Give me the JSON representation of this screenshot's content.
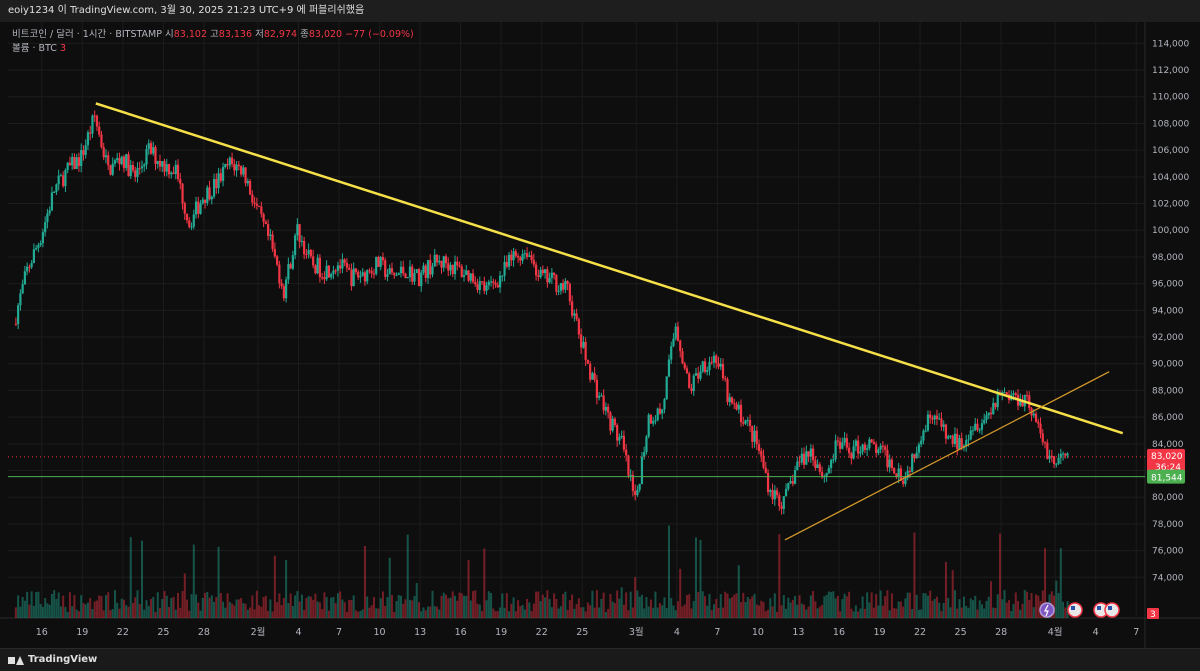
{
  "header": {
    "title": "eoiy1234 이 TradingView.com, 3월 30, 2025 21:23 UTC+9 에 퍼블리쉬했음"
  },
  "legend": {
    "symbol": "비트코인 / 달러 · 1시간 · BITSTAMP",
    "o_label": "시",
    "o_value": "83,102",
    "h_label": "고",
    "h_value": "83,136",
    "l_label": "저",
    "l_value": "82,974",
    "c_label": "종",
    "c_value": "83,020",
    "change": "−77 (−0.09%)",
    "volume_label": "볼륨 · BTC",
    "volume_value": "3"
  },
  "footer": {
    "brand": "TradingView"
  },
  "colors": {
    "up": "#22ab94",
    "down": "#f23645",
    "trend": "#f5e04a",
    "support": "#4caf50",
    "wedge": "#d49a2a",
    "grid": "#1c1c1c"
  },
  "icons": [
    "lightning-icon",
    "us-flag-icon",
    "us-flag-icon",
    "us-flag-icon"
  ],
  "chart_data": {
    "type": "candlestick",
    "ylim": [
      72000,
      115000
    ],
    "y_ticks": [
      74000,
      76000,
      78000,
      80000,
      82000,
      84000,
      86000,
      88000,
      90000,
      92000,
      94000,
      96000,
      98000,
      100000,
      102000,
      104000,
      106000,
      108000,
      110000,
      112000,
      114000
    ],
    "x_ticks": [
      "16",
      "19",
      "22",
      "25",
      "28",
      "2월",
      "4",
      "7",
      "10",
      "13",
      "16",
      "19",
      "22",
      "25",
      "3월",
      "4",
      "7",
      "10",
      "13",
      "16",
      "19",
      "22",
      "25",
      "28",
      "4월",
      "4",
      "7"
    ],
    "price_path": [
      {
        "d": "2025-01-14",
        "p": 93000
      },
      {
        "d": "2025-01-15",
        "p": 97000
      },
      {
        "d": "2025-01-16",
        "p": 99500
      },
      {
        "d": "2025-01-17",
        "p": 103000
      },
      {
        "d": "2025-01-18",
        "p": 104500
      },
      {
        "d": "2025-01-19",
        "p": 105500
      },
      {
        "d": "2025-01-20",
        "p": 108500
      },
      {
        "d": "2025-01-21",
        "p": 104500
      },
      {
        "d": "2025-01-22",
        "p": 105500
      },
      {
        "d": "2025-01-23",
        "p": 104000
      },
      {
        "d": "2025-01-24",
        "p": 106000
      },
      {
        "d": "2025-01-25",
        "p": 105000
      },
      {
        "d": "2025-01-26",
        "p": 104500
      },
      {
        "d": "2025-01-27",
        "p": 100500
      },
      {
        "d": "2025-01-28",
        "p": 102500
      },
      {
        "d": "2025-01-29",
        "p": 103500
      },
      {
        "d": "2025-01-30",
        "p": 105000
      },
      {
        "d": "2025-01-31",
        "p": 104500
      },
      {
        "d": "2025-02-01",
        "p": 101500
      },
      {
        "d": "2025-02-02",
        "p": 99000
      },
      {
        "d": "2025-02-03",
        "p": 95500
      },
      {
        "d": "2025-02-04",
        "p": 100000
      },
      {
        "d": "2025-02-05",
        "p": 97500
      },
      {
        "d": "2025-02-06",
        "p": 97000
      },
      {
        "d": "2025-02-07",
        "p": 97500
      },
      {
        "d": "2025-02-08",
        "p": 96500
      },
      {
        "d": "2025-02-09",
        "p": 96800
      },
      {
        "d": "2025-02-10",
        "p": 97500
      },
      {
        "d": "2025-02-11",
        "p": 96500
      },
      {
        "d": "2025-02-12",
        "p": 97000
      },
      {
        "d": "2025-02-13",
        "p": 96500
      },
      {
        "d": "2025-02-14",
        "p": 97500
      },
      {
        "d": "2025-02-15",
        "p": 97600
      },
      {
        "d": "2025-02-16",
        "p": 97000
      },
      {
        "d": "2025-02-17",
        "p": 96500
      },
      {
        "d": "2025-02-18",
        "p": 95500
      },
      {
        "d": "2025-02-19",
        "p": 96500
      },
      {
        "d": "2025-02-20",
        "p": 98000
      },
      {
        "d": "2025-02-21",
        "p": 98500
      },
      {
        "d": "2025-02-22",
        "p": 96500
      },
      {
        "d": "2025-02-23",
        "p": 96200
      },
      {
        "d": "2025-02-24",
        "p": 95500
      },
      {
        "d": "2025-02-25",
        "p": 91500
      },
      {
        "d": "2025-02-26",
        "p": 88500
      },
      {
        "d": "2025-02-27",
        "p": 86000
      },
      {
        "d": "2025-02-28",
        "p": 84000
      },
      {
        "d": "2025-03-01",
        "p": 79500
      },
      {
        "d": "2025-03-02",
        "p": 86000
      },
      {
        "d": "2025-03-03",
        "p": 86500
      },
      {
        "d": "2025-03-04",
        "p": 93000
      },
      {
        "d": "2025-03-05",
        "p": 88000
      },
      {
        "d": "2025-03-06",
        "p": 90000
      },
      {
        "d": "2025-03-07",
        "p": 90500
      },
      {
        "d": "2025-03-08",
        "p": 87000
      },
      {
        "d": "2025-03-09",
        "p": 86000
      },
      {
        "d": "2025-03-10",
        "p": 84000
      },
      {
        "d": "2025-03-11",
        "p": 80500
      },
      {
        "d": "2025-03-12",
        "p": 79500
      },
      {
        "d": "2025-03-13",
        "p": 82500
      },
      {
        "d": "2025-03-14",
        "p": 83500
      },
      {
        "d": "2025-03-15",
        "p": 81500
      },
      {
        "d": "2025-03-16",
        "p": 84000
      },
      {
        "d": "2025-03-17",
        "p": 83500
      },
      {
        "d": "2025-03-18",
        "p": 84000
      },
      {
        "d": "2025-03-19",
        "p": 83500
      },
      {
        "d": "2025-03-20",
        "p": 82500
      },
      {
        "d": "2025-03-21",
        "p": 81500
      },
      {
        "d": "2025-03-22",
        "p": 84500
      },
      {
        "d": "2025-03-23",
        "p": 86500
      },
      {
        "d": "2025-03-24",
        "p": 84500
      },
      {
        "d": "2025-03-25",
        "p": 84000
      },
      {
        "d": "2025-03-26",
        "p": 85500
      },
      {
        "d": "2025-03-27",
        "p": 86000
      },
      {
        "d": "2025-03-28",
        "p": 88000
      },
      {
        "d": "2025-03-29",
        "p": 87500
      },
      {
        "d": "2025-03-30",
        "p": 87500
      },
      {
        "d": "2025-03-31",
        "p": 84500
      },
      {
        "d": "2025-04-01",
        "p": 82500
      },
      {
        "d": "2025-04-02",
        "p": 83020
      }
    ],
    "trendlines": [
      {
        "name": "descending-resistance",
        "from": [
          "2025-01-20",
          109500
        ],
        "to": [
          "2025-04-06",
          84800
        ]
      },
      {
        "name": "ascending-support",
        "from": [
          "2025-03-12",
          76800
        ],
        "to": [
          "2025-04-05",
          89400
        ]
      },
      {
        "name": "horizontal-support",
        "level": 81544
      }
    ],
    "price_labels": [
      {
        "text": "83,020",
        "sub": "36:24"
      },
      {
        "text": "81,544"
      },
      {
        "text": "3"
      }
    ],
    "last_price": 83020,
    "support_level": 81544
  }
}
